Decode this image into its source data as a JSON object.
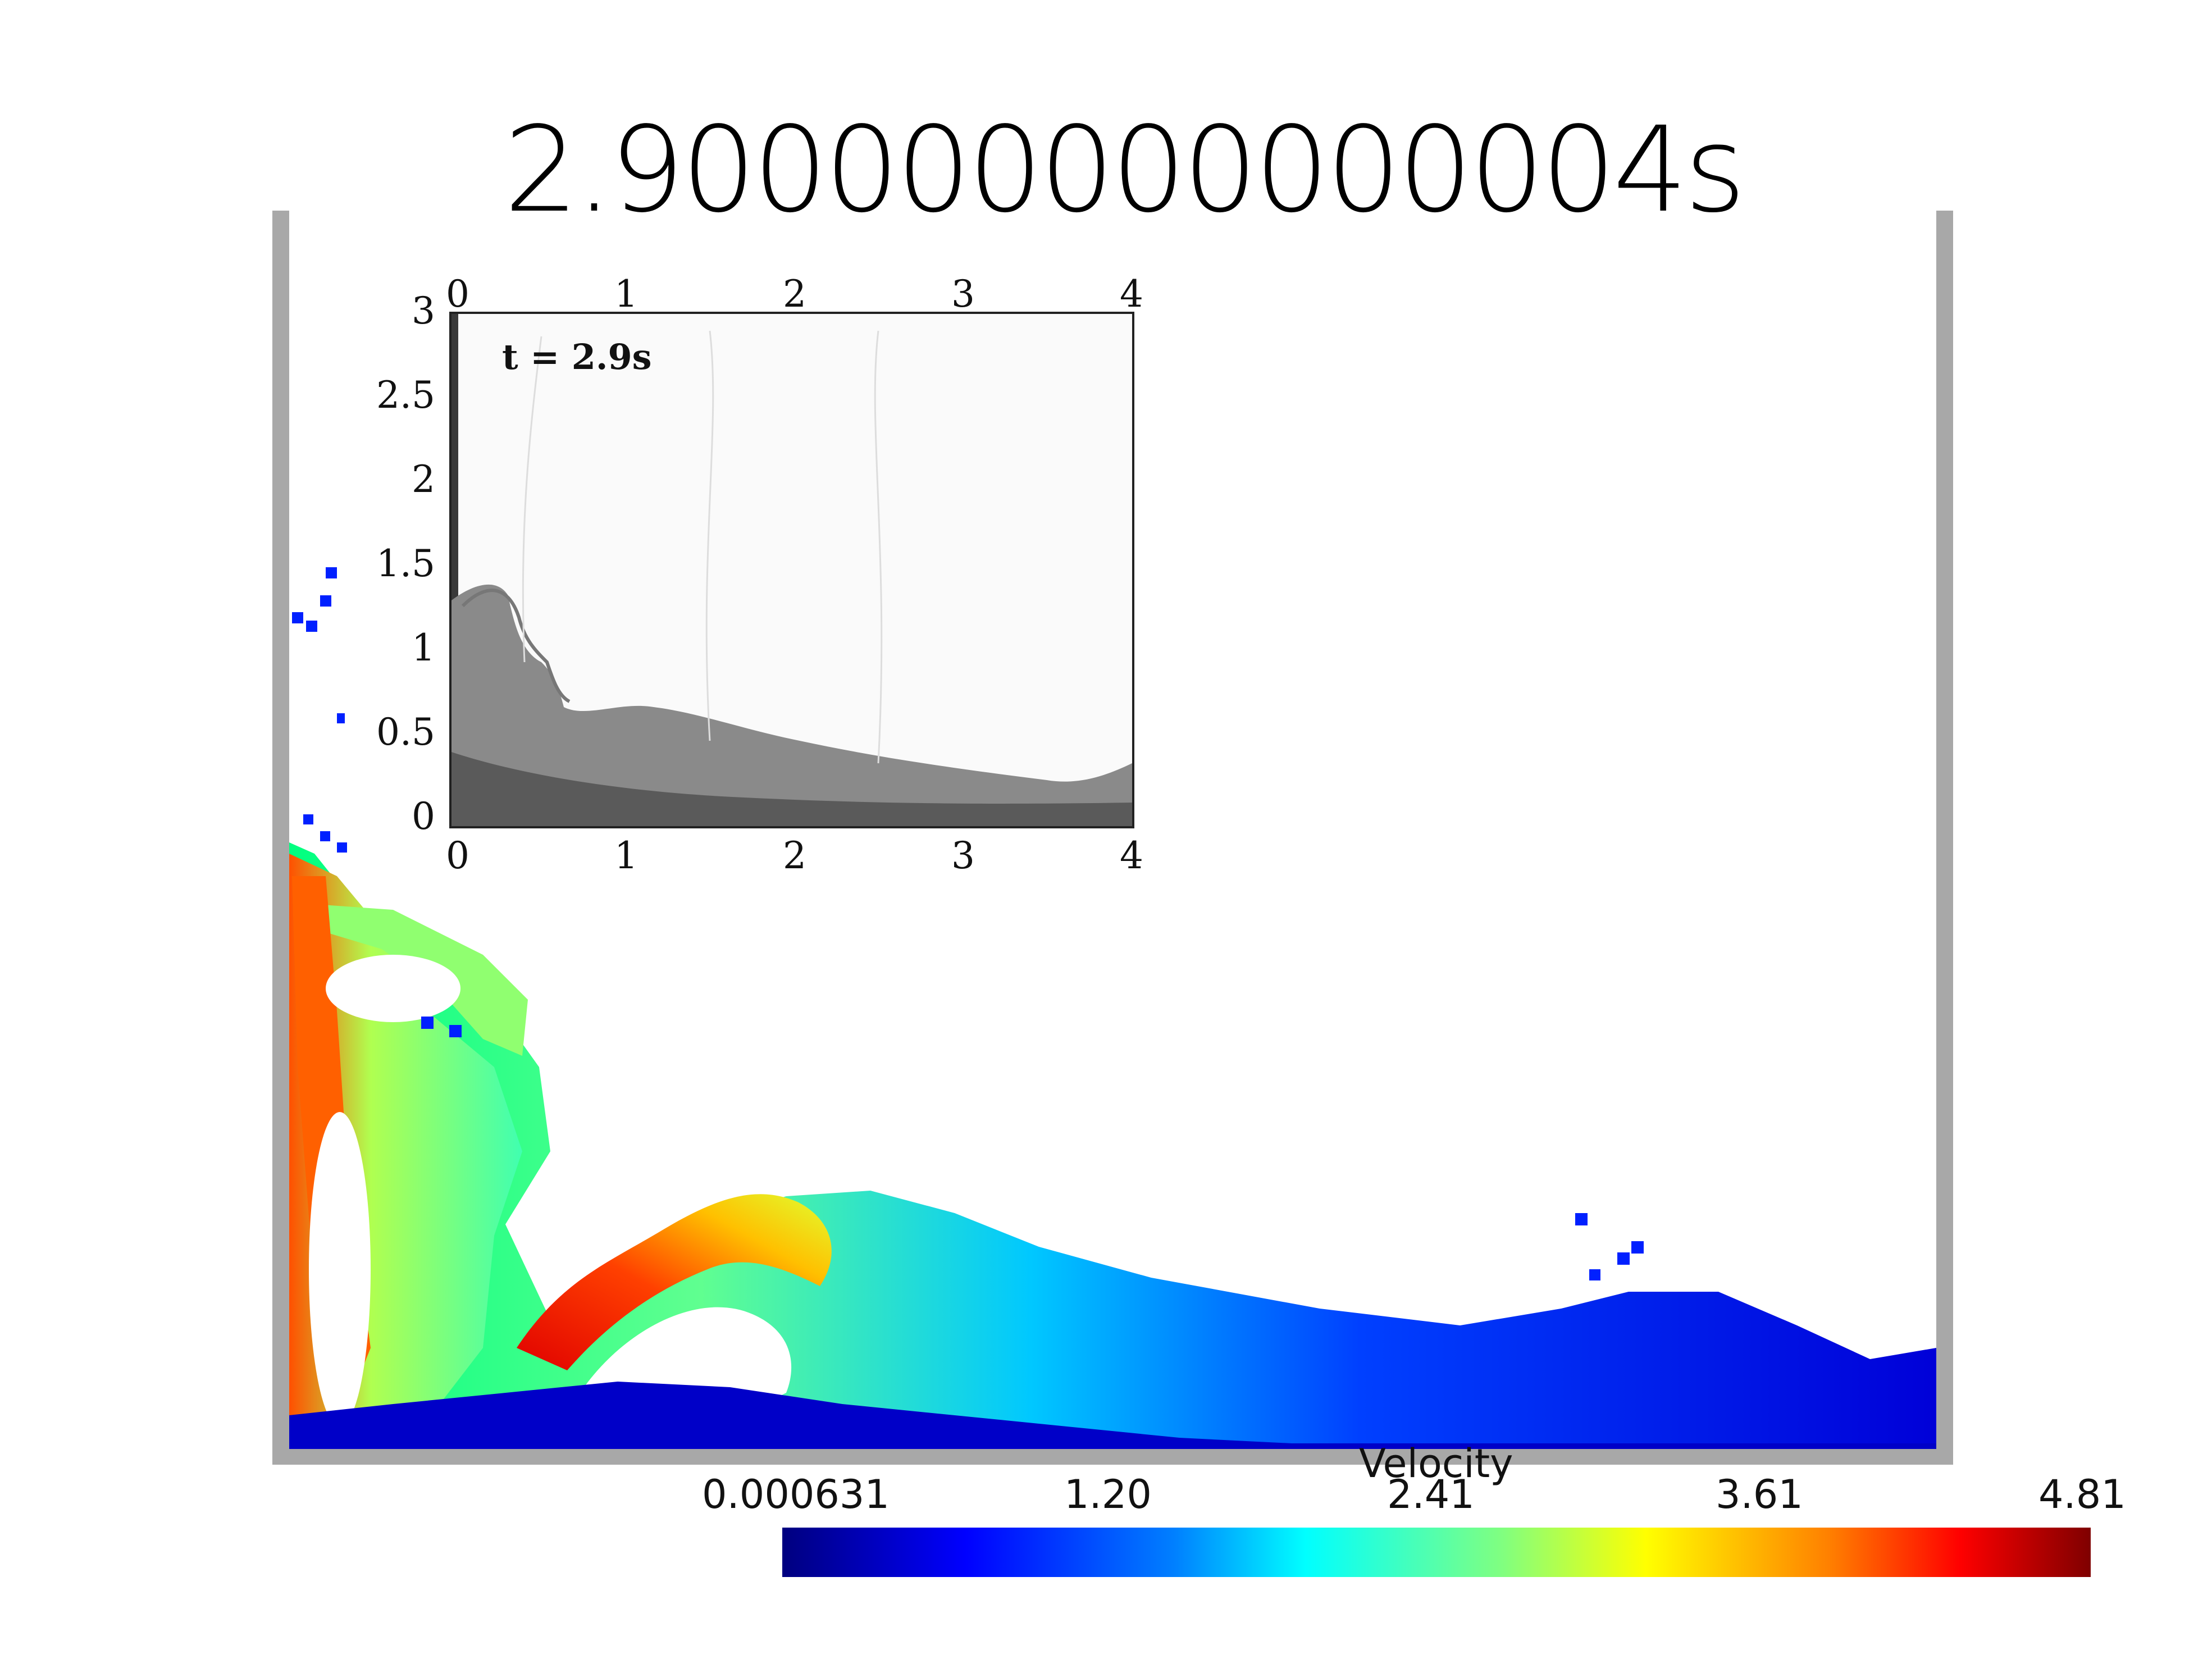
{
  "title": "2.900000000000004s",
  "inset": {
    "time_label": "t = 2.9s",
    "y_ticks": [
      "3",
      "2.5",
      "2",
      "1.5",
      "1",
      "0.5",
      "0"
    ],
    "x_ticks": [
      "0",
      "1",
      "2",
      "3",
      "4"
    ]
  },
  "colorbar": {
    "title": "Velocity",
    "ticks": [
      "0.000631",
      "1.20",
      "2.41",
      "3.61",
      "4.81"
    ],
    "colors": [
      "#00007f",
      "#0000ff",
      "#0080ff",
      "#00ffff",
      "#80ff80",
      "#ffff00",
      "#ff8000",
      "#ff0000",
      "#7f0000"
    ]
  }
}
